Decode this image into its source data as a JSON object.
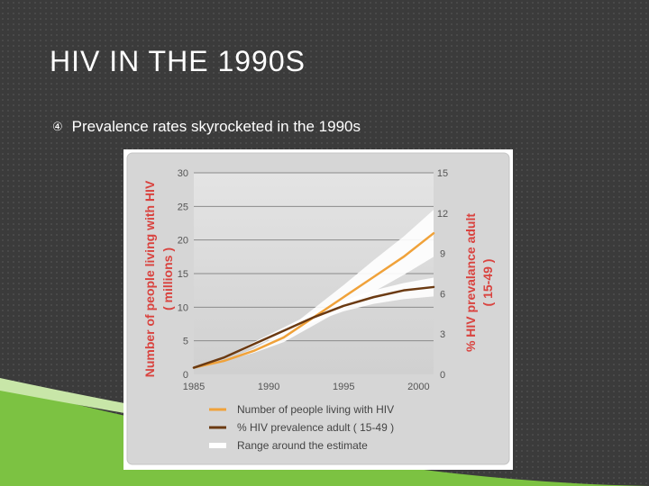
{
  "slide": {
    "title": "HIV IN THE 1990S",
    "bullet_icon": "circled-number-four-icon",
    "bullet": "Prevalence rates skyrocketed in the 1990s"
  },
  "colors": {
    "people_line": "#f0a23a",
    "prevalence_line": "#6b3a12",
    "axis_label": "#d9433f",
    "range_band": "#ffffff"
  },
  "chart_data": {
    "type": "line",
    "title": "",
    "x": [
      1985,
      1987,
      1989,
      1991,
      1993,
      1995,
      1997,
      1999,
      2001
    ],
    "xlim": [
      1985,
      2001
    ],
    "x_ticks": [
      "1985",
      "1990",
      "1995",
      "2000"
    ],
    "x_tick_values": [
      1985,
      1990,
      1995,
      2000
    ],
    "ylabel": "Number of people living with HIV",
    "ylabel_sub": "( millions )",
    "ylim": [
      0,
      30
    ],
    "y_ticks": [
      "0",
      "5",
      "10",
      "15",
      "20",
      "25",
      "30"
    ],
    "y_tick_values": [
      0,
      5,
      10,
      15,
      20,
      25,
      30
    ],
    "y2label": "% HIV prevalance adult",
    "y2label_sub": "( 15-49 )",
    "y2lim": [
      0,
      15
    ],
    "y2_ticks": [
      "0",
      "3",
      "6",
      "9",
      "12",
      "15"
    ],
    "y2_tick_values": [
      0,
      3,
      6,
      9,
      12,
      15
    ],
    "series": [
      {
        "name": "Number of people living with HIV",
        "axis": "left",
        "values": [
          1,
          2,
          3.5,
          5.5,
          8.5,
          11.5,
          14.5,
          17.5,
          21
        ],
        "range_low": [
          1,
          2,
          3.2,
          4.8,
          7.3,
          9.8,
          12.3,
          14.8,
          17.5
        ],
        "range_high": [
          1,
          2.1,
          3.8,
          6.3,
          9.8,
          13.3,
          17,
          20.5,
          24.5
        ]
      },
      {
        "name": "% HIV prevalence adult ( 15-49 )",
        "axis": "right",
        "values": [
          0.5,
          1.25,
          2.25,
          3.25,
          4.25,
          5.1,
          5.75,
          6.25,
          6.5
        ],
        "range_low": [
          0.5,
          1.2,
          2.1,
          3.0,
          3.9,
          4.7,
          5.25,
          5.6,
          5.8
        ],
        "range_high": [
          0.5,
          1.3,
          2.4,
          3.5,
          4.6,
          5.5,
          6.25,
          6.8,
          7.2
        ]
      }
    ],
    "legend": [
      {
        "label": "Number of people living with HIV",
        "color": "#f0a23a"
      },
      {
        "label": "% HIV prevalence adult ( 15-49 )",
        "color": "#6b3a12"
      },
      {
        "label": "Range around the estimate",
        "color": "#ffffff"
      }
    ],
    "legend_position": "bottom",
    "grid": true
  }
}
